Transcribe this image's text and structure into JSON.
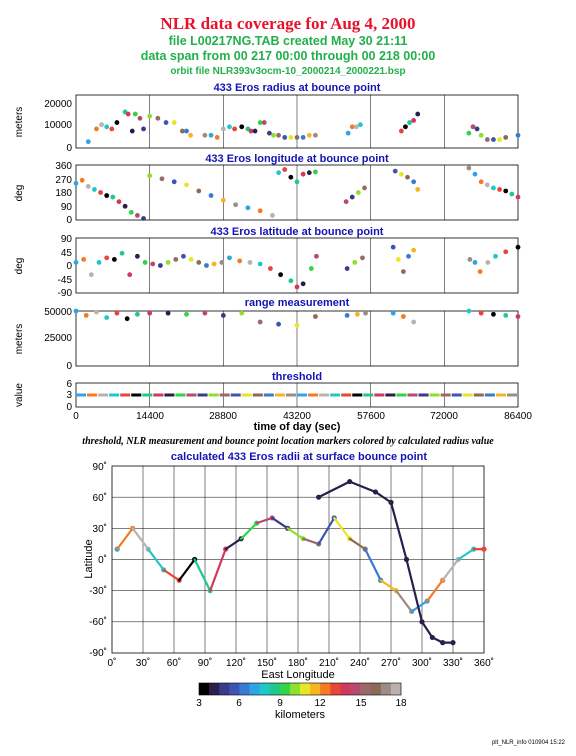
{
  "header": {
    "title": "NLR data coverage for Aug 4, 2000",
    "file_line": "file L00217NG.TAB created May 30 21:11",
    "span_line": "data span from 00 217 00:00 through 00 218 00:00",
    "orbit_line": "orbit file NLR393v3ocm-10_2000214_2000221.bsp"
  },
  "caption": "threshold, NLR measurement and bounce point location markers colored by calculated radius value",
  "footer": "plt_NLR_info 010904 15:22",
  "colorbar": {
    "label": "kilometers",
    "ticks": [
      "3",
      "6",
      "9",
      "12",
      "15",
      "18"
    ],
    "colors": [
      "#000000",
      "#2a1e4a",
      "#3a3a8a",
      "#3c55b4",
      "#3a7ad2",
      "#2ea5e0",
      "#1ec8c8",
      "#1fc98c",
      "#32d24a",
      "#8ee02c",
      "#e6e628",
      "#f6b420",
      "#f47a24",
      "#e8453a",
      "#d0395c",
      "#b84a72",
      "#9a6a6a",
      "#8c6a58",
      "#9c8c84",
      "#b9b2b0"
    ]
  },
  "panels": [
    {
      "title": "433 Eros radius at bounce point",
      "ylabel": "meters",
      "ylim": [
        0,
        25000
      ],
      "ticks": [
        "20000",
        "10000",
        "0"
      ]
    },
    {
      "title": "433 Eros longitude at bounce point",
      "ylabel": "deg",
      "ylim": [
        0,
        360
      ],
      "ticks": [
        "360",
        "270",
        "180",
        "90",
        "0"
      ]
    },
    {
      "title": "433 Eros latitude at bounce point",
      "ylabel": "deg",
      "ylim": [
        -90,
        90
      ],
      "ticks": [
        "90",
        "45",
        "0",
        "-45",
        "-90"
      ]
    },
    {
      "title": "range measurement",
      "ylabel": "meters",
      "ylim": [
        0,
        50000
      ],
      "ticks": [
        "50000",
        "25000",
        "0"
      ]
    },
    {
      "title": "threshold",
      "ylabel": "value",
      "ylim": [
        0,
        6
      ],
      "ticks": [
        "6",
        "3",
        "0"
      ]
    }
  ],
  "time_axis": {
    "xlabel": "time of day (sec)",
    "ticks": [
      "0",
      "14400",
      "28800",
      "43200",
      "57600",
      "72000",
      "86400"
    ],
    "xlim": [
      0,
      86400
    ]
  },
  "map": {
    "title": "calculated 433 Eros radii at surface bounce point",
    "xlabel": "East Longitude",
    "ylabel": "Latitude",
    "xticks": [
      "0˚",
      "30˚",
      "60˚",
      "90˚",
      "120˚",
      "150˚",
      "180˚",
      "210˚",
      "240˚",
      "270˚",
      "300˚",
      "330˚",
      "360˚"
    ],
    "yticks": [
      "90˚",
      "60˚",
      "30˚",
      "0˚",
      "-30˚",
      "-60˚",
      "-90˚"
    ]
  },
  "chart_data": [
    {
      "type": "scatter",
      "title": "433 Eros radius at bounce point",
      "xlabel": "time of day (sec)",
      "ylabel": "meters",
      "xlim": [
        0,
        86400
      ],
      "ylim": [
        0,
        25000
      ],
      "series": [
        {
          "x": [
            2400,
            4000,
            5000,
            6000,
            7000,
            8000,
            9600,
            10200,
            11000,
            11600,
            12500,
            13200,
            14400,
            16000,
            17600,
            19200,
            20800,
            21600,
            22400,
            25200,
            26400,
            27600,
            28800,
            30000,
            31000,
            32400,
            33600,
            34200,
            35000,
            36000,
            36800,
            37800,
            38600,
            39600,
            40800,
            42000,
            43200,
            44400,
            45600,
            46800,
            53200,
            54000,
            54800,
            55600,
            63600,
            64400,
            65200,
            66000,
            66800,
            76800,
            77600,
            78400,
            79200,
            80400,
            81600,
            82800,
            84000,
            86400
          ],
          "y": [
            3000,
            9000,
            11000,
            10000,
            9000,
            12000,
            17000,
            16000,
            8000,
            16000,
            14000,
            9000,
            15000,
            14000,
            12000,
            12000,
            8000,
            8000,
            6000,
            6000,
            6000,
            5000,
            9000,
            10000,
            9000,
            10000,
            9000,
            8000,
            8000,
            12000,
            12000,
            7000,
            6000,
            6000,
            5000,
            5000,
            5000,
            5000,
            6000,
            6000,
            7000,
            10000,
            10000,
            11000,
            8000,
            10000,
            12000,
            13000,
            16000,
            7000,
            10000,
            9000,
            6000,
            4000,
            4000,
            4000,
            5000,
            6000
          ]
        }
      ]
    },
    {
      "type": "scatter",
      "title": "433 Eros longitude at bounce point",
      "xlabel": "time of day (sec)",
      "ylabel": "deg",
      "xlim": [
        0,
        86400
      ],
      "ylim": [
        0,
        360
      ],
      "series": [
        {
          "x": [
            0,
            1200,
            2400,
            3600,
            4800,
            6000,
            7200,
            8400,
            9600,
            10800,
            12000,
            13200,
            14400,
            16800,
            19200,
            21600,
            24000,
            26400,
            28800,
            31200,
            33600,
            36000,
            38400,
            39600,
            40800,
            42000,
            43200,
            44400,
            45600,
            46800,
            52800,
            54000,
            55200,
            56400,
            62400,
            63600,
            64800,
            66000,
            66800,
            76800,
            78000,
            79200,
            80400,
            81600,
            82800,
            84000,
            85200,
            86400
          ],
          "y": [
            240,
            260,
            220,
            200,
            180,
            160,
            150,
            120,
            90,
            50,
            30,
            10,
            290,
            270,
            250,
            230,
            190,
            160,
            130,
            100,
            80,
            60,
            30,
            310,
            330,
            280,
            250,
            300,
            310,
            315,
            120,
            150,
            180,
            210,
            320,
            300,
            280,
            250,
            200,
            340,
            300,
            250,
            230,
            210,
            200,
            190,
            170,
            150
          ]
        }
      ]
    },
    {
      "type": "scatter",
      "title": "433 Eros latitude at bounce point",
      "xlabel": "time of day (sec)",
      "ylabel": "deg",
      "xlim": [
        0,
        86400
      ],
      "ylim": [
        -90,
        90
      ],
      "series": [
        {
          "x": [
            0,
            1500,
            3000,
            4500,
            6000,
            7500,
            9000,
            10500,
            12000,
            13500,
            15000,
            16500,
            18000,
            19500,
            21000,
            22500,
            24000,
            25500,
            27000,
            28500,
            30000,
            32000,
            34000,
            36000,
            38000,
            40000,
            42000,
            43200,
            44400,
            46000,
            47000,
            53000,
            54500,
            56000,
            62000,
            63000,
            64000,
            65000,
            66000,
            77000,
            78000,
            79000,
            80500,
            82000,
            84000,
            86400
          ],
          "y": [
            10,
            20,
            -30,
            10,
            25,
            20,
            40,
            -30,
            30,
            10,
            5,
            0,
            10,
            20,
            30,
            20,
            10,
            0,
            5,
            10,
            25,
            15,
            10,
            5,
            -10,
            -30,
            -50,
            -70,
            -60,
            -10,
            30,
            -10,
            10,
            25,
            60,
            20,
            -20,
            30,
            50,
            20,
            10,
            -20,
            10,
            30,
            45,
            60
          ]
        }
      ]
    },
    {
      "type": "scatter",
      "title": "range measurement",
      "xlabel": "time of day (sec)",
      "ylabel": "meters",
      "xlim": [
        0,
        86400
      ],
      "ylim": [
        0,
        50000
      ],
      "series": [
        {
          "x": [
            0,
            2000,
            4000,
            6000,
            8000,
            10000,
            12000,
            14400,
            18000,
            21600,
            25200,
            28800,
            32400,
            36000,
            39600,
            43200,
            46800,
            53000,
            55000,
            56600,
            62000,
            64000,
            66000,
            76800,
            79200,
            81600,
            84000,
            86400
          ],
          "y": [
            50000,
            46000,
            49000,
            44000,
            48000,
            43000,
            47000,
            48000,
            48000,
            47000,
            48000,
            46000,
            48000,
            40000,
            38000,
            37000,
            45000,
            46000,
            47000,
            48000,
            48000,
            45000,
            40000,
            50000,
            48000,
            47000,
            46000,
            45000
          ]
        }
      ]
    },
    {
      "type": "scatter",
      "title": "threshold",
      "xlabel": "time of day (sec)",
      "ylabel": "value",
      "xlim": [
        0,
        86400
      ],
      "ylim": [
        0,
        6
      ],
      "series": [
        {
          "x": [
            0,
            43200,
            86400
          ],
          "y": [
            3,
            3,
            3
          ]
        }
      ]
    },
    {
      "type": "scatter",
      "title": "calculated 433 Eros radii at surface bounce point",
      "xlabel": "East Longitude",
      "ylabel": "Latitude",
      "xlim": [
        0,
        360
      ],
      "ylim": [
        -90,
        90
      ],
      "series": [
        {
          "x": [
            5,
            20,
            35,
            50,
            65,
            80,
            95,
            110,
            125,
            140,
            155,
            170,
            185,
            200,
            215,
            230,
            245,
            260,
            275,
            290,
            305,
            320,
            335,
            350,
            360
          ],
          "y": [
            10,
            30,
            10,
            -10,
            -20,
            0,
            -30,
            10,
            20,
            35,
            40,
            30,
            20,
            15,
            40,
            20,
            10,
            -20,
            -30,
            -50,
            -40,
            -20,
            0,
            10,
            10
          ]
        },
        {
          "x": [
            200,
            230,
            255,
            270,
            285,
            300,
            310,
            320,
            330
          ],
          "y": [
            60,
            75,
            65,
            55,
            0,
            -60,
            -75,
            -80,
            -80
          ]
        }
      ]
    }
  ]
}
